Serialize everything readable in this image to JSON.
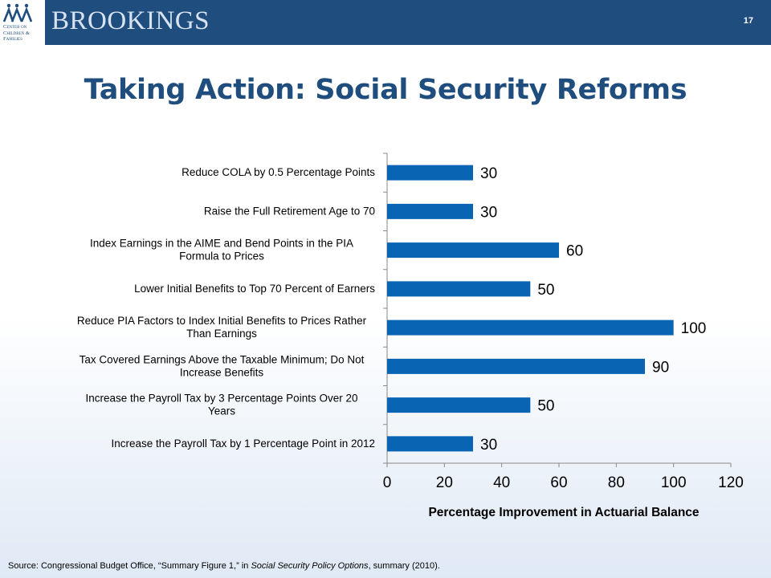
{
  "header": {
    "brand": "BROOKINGS",
    "center_name": "Center on\nChildren &\nFamilies",
    "page_number": "17"
  },
  "title": "Taking Action: Social Security Reforms",
  "source": {
    "prefix": "Source: Congressional Budget Office, “Summary Figure 1,” in ",
    "italic": "Social Security Policy Options",
    "suffix": ", summary (2010)."
  },
  "colors": {
    "bar": "#0a64b4",
    "brand": "#1e4d7e"
  },
  "chart_data": {
    "type": "bar",
    "orientation": "horizontal",
    "categories": [
      [
        "Reduce COLA by 0.5 Percentage Points"
      ],
      [
        "Raise the Full Retirement Age to 70"
      ],
      [
        "Index Earnings in the AIME and Bend Points in the PIA",
        "Formula to Prices"
      ],
      [
        "Lower Initial Benefits to Top 70 Percent of Earners"
      ],
      [
        "Reduce PIA Factors to Index Initial Benefits to Prices Rather",
        "Than Earnings"
      ],
      [
        "Tax Covered Earnings Above the Taxable Minimum; Do Not",
        "Increase Benefits"
      ],
      [
        "Increase the Payroll Tax by 3 Percentage Points Over 20",
        "Years"
      ],
      [
        "Increase the Payroll Tax by 1 Percentage Point in 2012"
      ]
    ],
    "values": [
      30,
      30,
      60,
      50,
      100,
      90,
      50,
      30
    ],
    "data_labels": [
      "30",
      "30",
      "60",
      "50",
      "100",
      "90",
      "50",
      "30"
    ],
    "xlabel": "Percentage Improvement in Actuarial Balance",
    "xlim": [
      0,
      120
    ],
    "xticks": [
      "0",
      "20",
      "40",
      "60",
      "80",
      "100",
      "120"
    ],
    "grid": false,
    "legend": "none"
  }
}
